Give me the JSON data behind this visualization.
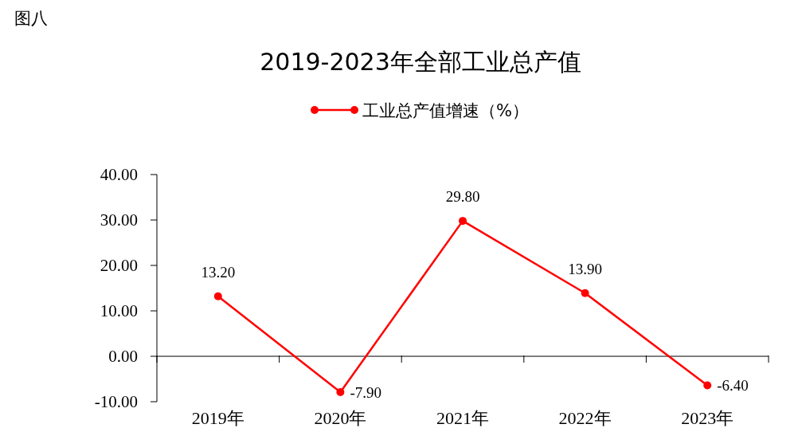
{
  "chart_data": {
    "type": "line",
    "title": "2019-2023年全部工业总产值",
    "annotations": [
      "图八"
    ],
    "categories": [
      "2019年",
      "2020年",
      "2021年",
      "2022年",
      "2023年"
    ],
    "series": [
      {
        "name": "工业总产值增速（%）",
        "color": "#ff0000",
        "values": [
          13.2,
          -7.9,
          29.8,
          13.9,
          -6.4
        ],
        "value_labels": [
          "13.20",
          "-7.90",
          "29.80",
          "13.90",
          "-6.40"
        ]
      }
    ],
    "ylim": [
      -10,
      40
    ],
    "yticks": [
      {
        "value": -10,
        "label": "-10.00"
      },
      {
        "value": 0,
        "label": "0.00"
      },
      {
        "value": 10,
        "label": "10.00"
      },
      {
        "value": 20,
        "label": "20.00"
      },
      {
        "value": 30,
        "label": "30.00"
      },
      {
        "value": 40,
        "label": "40.00"
      }
    ],
    "legend": "top",
    "marker": "circle",
    "line_style": "solid"
  }
}
